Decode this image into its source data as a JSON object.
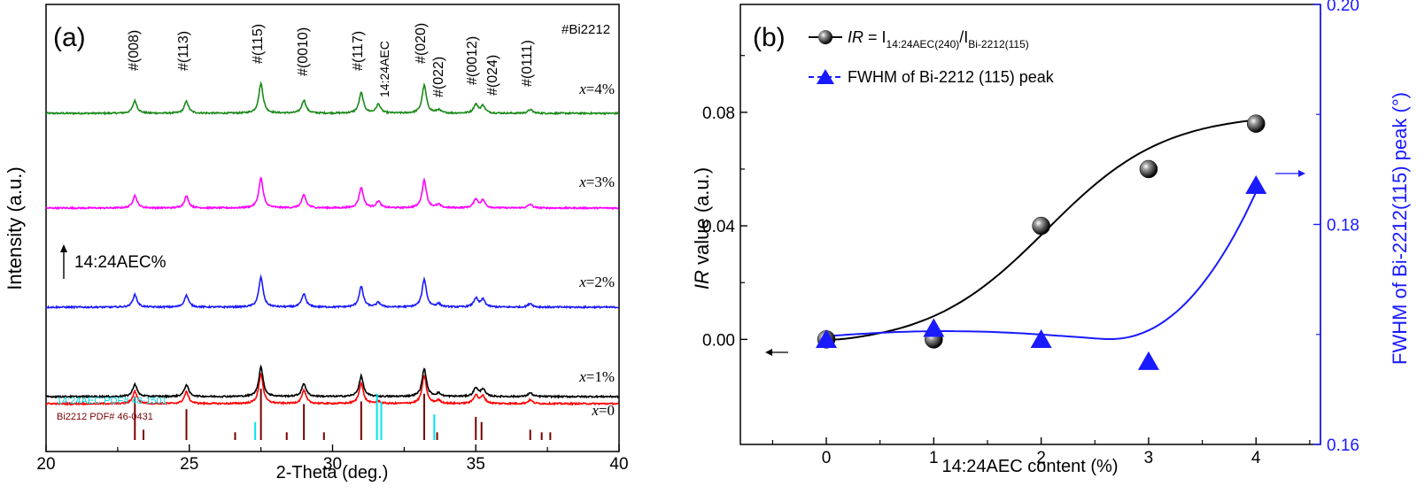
{
  "chart_data": [
    {
      "type": "line",
      "panel_label": "(a)",
      "xlabel": "2-Theta (deg.)",
      "ylabel": "Intensity (a.u.)",
      "xlim": [
        20,
        40
      ],
      "xticks": [
        "20",
        "25",
        "30",
        "35",
        "40"
      ],
      "sample_label": "#Bi2212",
      "arrow_note": "14:24AEC%",
      "peaks": [
        {
          "label": "#(008)",
          "x": 23.1,
          "h": 1.0
        },
        {
          "label": "#(113)",
          "x": 24.9,
          "h": 0.95
        },
        {
          "label": "#(115)",
          "x": 27.5,
          "h": 2.4
        },
        {
          "label": "#(0010)",
          "x": 29.0,
          "h": 1.05
        },
        {
          "label": "#(117)",
          "x": 31.0,
          "h": 1.65
        },
        {
          "label": "14:24AEC",
          "x": 31.6,
          "h": 0.35
        },
        {
          "label": "#(020)",
          "x": 33.2,
          "h": 2.25
        },
        {
          "label": "#(022)",
          "x": 33.7,
          "h": 0.25
        },
        {
          "label": "#(0012)",
          "x": 35.0,
          "h": 0.7
        },
        {
          "label": "#(024)",
          "x": 35.25,
          "h": 0.6
        },
        {
          "label": "#(0111)",
          "x": 36.9,
          "h": 0.3
        }
      ],
      "series": [
        {
          "name": "x=4%",
          "color": "#1a8a1a",
          "aec": 0.8
        },
        {
          "name": "x=3%",
          "color": "#ff00ff",
          "aec": 0.6
        },
        {
          "name": "x=2%",
          "color": "#1a1aff",
          "aec": 0.4
        },
        {
          "name": "x=1%",
          "color": "#ff0000",
          "aec": 0.2
        },
        {
          "name": "x=0",
          "color": "#000000",
          "aec": 0.0
        }
      ],
      "reference_patterns": [
        {
          "name": "14:24AEC PDF# 48-1501",
          "color": "#00e5ee",
          "lines": [
            {
              "x": 27.3,
              "h": 0.35
            },
            {
              "x": 31.55,
              "h": 0.9
            },
            {
              "x": 31.7,
              "h": 0.75
            },
            {
              "x": 33.55,
              "h": 0.5
            }
          ]
        },
        {
          "name": "Bi2212 PDF# 46-0431",
          "color": "#7a0000",
          "lines": [
            {
              "x": 23.1,
              "h": 0.85
            },
            {
              "x": 23.4,
              "h": 0.2
            },
            {
              "x": 24.9,
              "h": 0.6
            },
            {
              "x": 26.6,
              "h": 0.15
            },
            {
              "x": 27.5,
              "h": 1.0
            },
            {
              "x": 28.4,
              "h": 0.15
            },
            {
              "x": 29.0,
              "h": 0.7
            },
            {
              "x": 29.7,
              "h": 0.15
            },
            {
              "x": 31.0,
              "h": 0.75
            },
            {
              "x": 33.2,
              "h": 0.9
            },
            {
              "x": 33.65,
              "h": 0.15
            },
            {
              "x": 35.0,
              "h": 0.45
            },
            {
              "x": 35.2,
              "h": 0.35
            },
            {
              "x": 36.9,
              "h": 0.2
            },
            {
              "x": 37.3,
              "h": 0.15
            },
            {
              "x": 37.6,
              "h": 0.15
            }
          ]
        }
      ]
    },
    {
      "type": "line",
      "panel_label": "(b)",
      "xlabel": "14:24AEC content (%)",
      "xlim": [
        -0.8,
        4.6
      ],
      "xticks": [
        0,
        1,
        2,
        3,
        4
      ],
      "left_axis": {
        "label_italic": "IR",
        "label_rest": " value  (a.u.)",
        "ylim": [
          -0.037,
          0.118
        ],
        "ticks": [
          "0.00",
          "0.04",
          "0.08"
        ],
        "tick_values": [
          0.0,
          0.04,
          0.08
        ]
      },
      "right_axis": {
        "label": "FWHM of  Bi-2212(115) peak (°)",
        "ylim": [
          0.16,
          0.2
        ],
        "ticks": [
          "0.16",
          "0.18",
          "0.20"
        ],
        "tick_values": [
          0.16,
          0.18,
          0.2
        ],
        "color": "#1a1aff"
      },
      "series": [
        {
          "name": "IR",
          "axis": "left",
          "marker": "sphere",
          "color": "#000000",
          "x": [
            0,
            1,
            2,
            3,
            4
          ],
          "y": [
            0.0,
            0.0,
            0.04,
            0.06,
            0.076
          ]
        },
        {
          "name": "FWHM of Bi-2212 (115) peak",
          "axis": "right",
          "marker": "triangle",
          "color": "#1a1aff",
          "x": [
            0,
            1,
            2,
            3,
            4
          ],
          "y": [
            0.1695,
            0.1705,
            0.1695,
            0.1675,
            0.1835
          ]
        }
      ],
      "legend": {
        "ir_prefix": "IR",
        "ir_eq": " = I",
        "ir_sub1": "14:24AEC(240)",
        "ir_slash": "/I",
        "ir_sub2": "Bi-2212(115)",
        "fwhm": "FWHM of Bi-2212 (115) peak"
      }
    }
  ]
}
